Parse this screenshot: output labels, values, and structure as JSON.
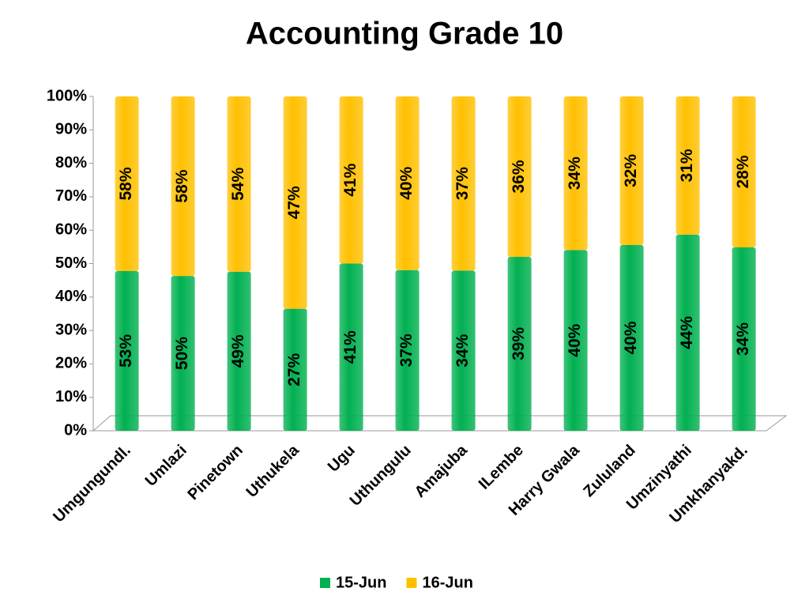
{
  "chart_data": {
    "type": "bar",
    "stacking": "percent",
    "title": "Accounting Grade 10",
    "categories": [
      "Umgungundl.",
      "Umlazi",
      "Pinetown",
      "Uthukela",
      "Ugu",
      "Uthungulu",
      "Amajuba",
      "ILembe",
      "Harry Gwala",
      "Zululand",
      "Umzinyathi",
      "Umkhanyakd."
    ],
    "series": [
      {
        "name": "15-Jun",
        "color": "#00b050",
        "values": [
          53,
          50,
          49,
          27,
          41,
          37,
          34,
          39,
          40,
          40,
          44,
          34
        ],
        "value_labels": [
          "53%",
          "50%",
          "49%",
          "27%",
          "41%",
          "37%",
          "34%",
          "39%",
          "40%",
          "40%",
          "44%",
          "34%"
        ]
      },
      {
        "name": "16-Jun",
        "color": "#ffc000",
        "values": [
          58,
          58,
          54,
          47,
          41,
          40,
          37,
          36,
          34,
          32,
          31,
          28
        ],
        "value_labels": [
          "58%",
          "58%",
          "54%",
          "47%",
          "41%",
          "40%",
          "37%",
          "36%",
          "34%",
          "32%",
          "31%",
          "28%"
        ]
      }
    ],
    "ylim": [
      0,
      100
    ],
    "yticks": [
      {
        "value": 0,
        "label": "0%"
      },
      {
        "value": 10,
        "label": "10%"
      },
      {
        "value": 20,
        "label": "20%"
      },
      {
        "value": 30,
        "label": "30%"
      },
      {
        "value": 40,
        "label": "40%"
      },
      {
        "value": 50,
        "label": "50%"
      },
      {
        "value": 60,
        "label": "60%"
      },
      {
        "value": 70,
        "label": "70%"
      },
      {
        "value": 80,
        "label": "80%"
      },
      {
        "value": 90,
        "label": "90%"
      },
      {
        "value": 100,
        "label": "100%"
      }
    ],
    "legend": "bottom"
  }
}
